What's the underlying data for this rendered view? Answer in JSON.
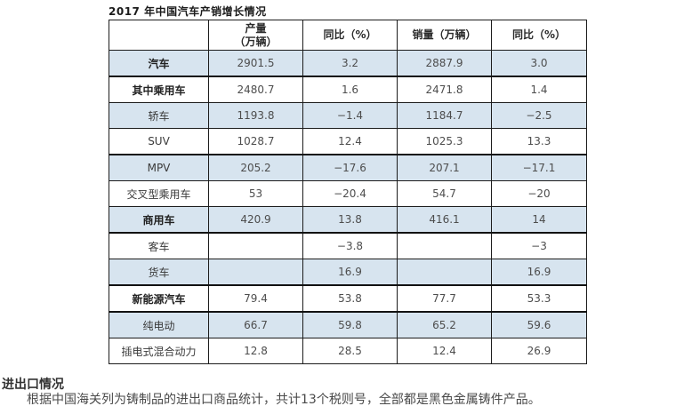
{
  "table": {
    "title": "2017 年中国汽车产销增长情况",
    "columns": [
      "",
      "产量\n（万辆）",
      "同比（%）",
      "销量（万辆）",
      "同比（%）"
    ],
    "rows": [
      {
        "label": "汽车",
        "bold": true,
        "shaded": true,
        "thick_bottom": true,
        "values": [
          "2901.5",
          "3.2",
          "2887.9",
          "3.0"
        ]
      },
      {
        "label": "其中乘用车",
        "bold": true,
        "shaded": false,
        "thick_bottom": false,
        "values": [
          "2480.7",
          "1.6",
          "2471.8",
          "1.4"
        ]
      },
      {
        "label": "轿车",
        "bold": false,
        "shaded": true,
        "thick_bottom": false,
        "values": [
          "1193.8",
          "−1.4",
          "1184.7",
          "−2.5"
        ]
      },
      {
        "label": "SUV",
        "bold": false,
        "shaded": false,
        "thick_bottom": true,
        "values": [
          "1028.7",
          "12.4",
          "1025.3",
          "13.3"
        ]
      },
      {
        "label": "MPV",
        "bold": false,
        "shaded": true,
        "thick_bottom": false,
        "values": [
          "205.2",
          "−17.6",
          "207.1",
          "−17.1"
        ]
      },
      {
        "label": "交叉型乘用车",
        "bold": false,
        "shaded": false,
        "thick_bottom": false,
        "values": [
          "53",
          "−20.4",
          "54.7",
          "−20"
        ]
      },
      {
        "label": "商用车",
        "bold": true,
        "shaded": true,
        "thick_bottom": true,
        "values": [
          "420.9",
          "13.8",
          "416.1",
          "14"
        ]
      },
      {
        "label": "客车",
        "bold": false,
        "shaded": false,
        "thick_bottom": false,
        "values": [
          "",
          "−3.8",
          "",
          "−3"
        ]
      },
      {
        "label": "货车",
        "bold": false,
        "shaded": true,
        "thick_bottom": true,
        "values": [
          "",
          "16.9",
          "",
          "16.9"
        ]
      },
      {
        "label": "新能源汽车",
        "bold": true,
        "shaded": false,
        "thick_bottom": true,
        "values": [
          "79.4",
          "53.8",
          "77.7",
          "53.3"
        ]
      },
      {
        "label": "纯电动",
        "bold": false,
        "shaded": true,
        "thick_bottom": false,
        "values": [
          "66.7",
          "59.8",
          "65.2",
          "59.6"
        ]
      },
      {
        "label": "插电式混合动力",
        "bold": false,
        "shaded": false,
        "thick_bottom": false,
        "values": [
          "12.8",
          "28.5",
          "12.4",
          "26.9"
        ]
      }
    ]
  },
  "footer": {
    "heading": "进出口情况",
    "paragraph": "根据中国海关列为铸制品的进出口商品统计，共计13个税则号，全部都是黑色金属铸件产品。"
  },
  "colors": {
    "row_shade": "#d7e4ef",
    "border": "#1c1c1c",
    "text": "#4d4d4d"
  }
}
